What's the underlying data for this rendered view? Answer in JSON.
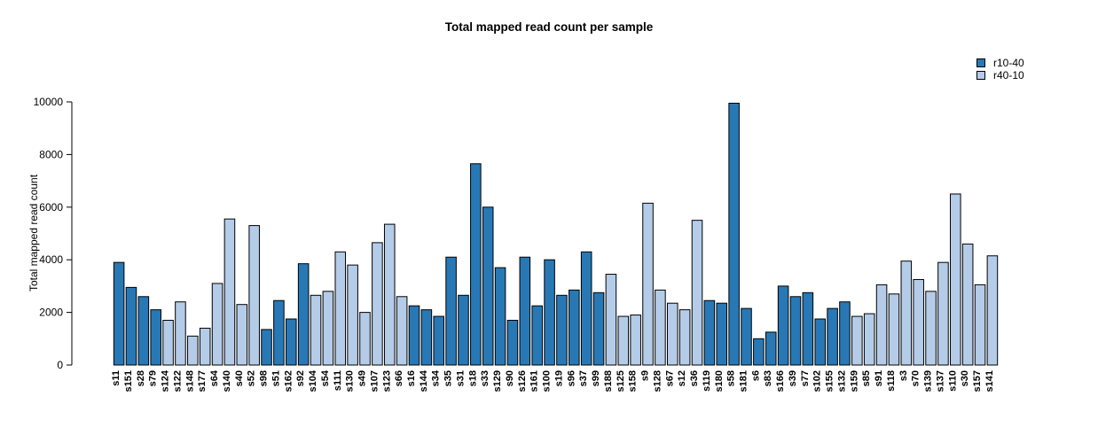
{
  "page": {
    "background_color": "#ffffff"
  },
  "chart_data": {
    "type": "bar",
    "title": "Total mapped read count per sample",
    "xlabel": "",
    "ylabel": "Total mapped read count",
    "ylim": [
      0,
      10000
    ],
    "yticks": [
      0,
      2000,
      4000,
      6000,
      8000,
      10000
    ],
    "grid": false,
    "bar_border_color": "#000000",
    "colors": {
      "r10-40": "#2878B5",
      "r40-10": "#B4CCE8"
    },
    "legend": {
      "position": "top-right",
      "entries": [
        {
          "label": "r10-40",
          "color": "#2878B5"
        },
        {
          "label": "r40-10",
          "color": "#B4CCE8"
        }
      ]
    },
    "bars": [
      {
        "sample": "s11",
        "group": "r10-40",
        "value": 3900
      },
      {
        "sample": "s151",
        "group": "r10-40",
        "value": 2950
      },
      {
        "sample": "s28",
        "group": "r10-40",
        "value": 2600
      },
      {
        "sample": "s79",
        "group": "r10-40",
        "value": 2100
      },
      {
        "sample": "s124",
        "group": "r40-10",
        "value": 1700
      },
      {
        "sample": "s122",
        "group": "r40-10",
        "value": 2400
      },
      {
        "sample": "s148",
        "group": "r40-10",
        "value": 1100
      },
      {
        "sample": "s177",
        "group": "r40-10",
        "value": 1400
      },
      {
        "sample": "s64",
        "group": "r40-10",
        "value": 3100
      },
      {
        "sample": "s140",
        "group": "r40-10",
        "value": 5550
      },
      {
        "sample": "s40",
        "group": "r40-10",
        "value": 2300
      },
      {
        "sample": "s52",
        "group": "r40-10",
        "value": 5300
      },
      {
        "sample": "s98",
        "group": "r10-40",
        "value": 1350
      },
      {
        "sample": "s51",
        "group": "r10-40",
        "value": 2450
      },
      {
        "sample": "s162",
        "group": "r10-40",
        "value": 1750
      },
      {
        "sample": "s92",
        "group": "r10-40",
        "value": 3850
      },
      {
        "sample": "s104",
        "group": "r40-10",
        "value": 2650
      },
      {
        "sample": "s54",
        "group": "r40-10",
        "value": 2800
      },
      {
        "sample": "s111",
        "group": "r40-10",
        "value": 4300
      },
      {
        "sample": "s130",
        "group": "r40-10",
        "value": 3800
      },
      {
        "sample": "s49",
        "group": "r40-10",
        "value": 2000
      },
      {
        "sample": "s107",
        "group": "r40-10",
        "value": 4650
      },
      {
        "sample": "s123",
        "group": "r40-10",
        "value": 5350
      },
      {
        "sample": "s66",
        "group": "r40-10",
        "value": 2600
      },
      {
        "sample": "s16",
        "group": "r10-40",
        "value": 2250
      },
      {
        "sample": "s144",
        "group": "r10-40",
        "value": 2100
      },
      {
        "sample": "s34",
        "group": "r10-40",
        "value": 1850
      },
      {
        "sample": "s35",
        "group": "r10-40",
        "value": 4100
      },
      {
        "sample": "s31",
        "group": "r10-40",
        "value": 2650
      },
      {
        "sample": "s18",
        "group": "r10-40",
        "value": 7650
      },
      {
        "sample": "s33",
        "group": "r10-40",
        "value": 6000
      },
      {
        "sample": "s129",
        "group": "r10-40",
        "value": 3700
      },
      {
        "sample": "s90",
        "group": "r10-40",
        "value": 1700
      },
      {
        "sample": "s126",
        "group": "r10-40",
        "value": 4100
      },
      {
        "sample": "s161",
        "group": "r10-40",
        "value": 2250
      },
      {
        "sample": "s100",
        "group": "r10-40",
        "value": 4000
      },
      {
        "sample": "s19",
        "group": "r10-40",
        "value": 2650
      },
      {
        "sample": "s96",
        "group": "r10-40",
        "value": 2850
      },
      {
        "sample": "s37",
        "group": "r10-40",
        "value": 4300
      },
      {
        "sample": "s99",
        "group": "r10-40",
        "value": 2750
      },
      {
        "sample": "s188",
        "group": "r40-10",
        "value": 3450
      },
      {
        "sample": "s125",
        "group": "r40-10",
        "value": 1850
      },
      {
        "sample": "s158",
        "group": "r40-10",
        "value": 1900
      },
      {
        "sample": "s9",
        "group": "r40-10",
        "value": 6150
      },
      {
        "sample": "s128",
        "group": "r40-10",
        "value": 2850
      },
      {
        "sample": "s67",
        "group": "r40-10",
        "value": 2350
      },
      {
        "sample": "s12",
        "group": "r40-10",
        "value": 2100
      },
      {
        "sample": "s36",
        "group": "r40-10",
        "value": 5500
      },
      {
        "sample": "s119",
        "group": "r10-40",
        "value": 2450
      },
      {
        "sample": "s180",
        "group": "r10-40",
        "value": 2350
      },
      {
        "sample": "s58",
        "group": "r10-40",
        "value": 9950
      },
      {
        "sample": "s181",
        "group": "r10-40",
        "value": 2150
      },
      {
        "sample": "s6",
        "group": "r10-40",
        "value": 1000
      },
      {
        "sample": "s83",
        "group": "r10-40",
        "value": 1250
      },
      {
        "sample": "s166",
        "group": "r10-40",
        "value": 3000
      },
      {
        "sample": "s39",
        "group": "r10-40",
        "value": 2600
      },
      {
        "sample": "s77",
        "group": "r10-40",
        "value": 2750
      },
      {
        "sample": "s102",
        "group": "r10-40",
        "value": 1750
      },
      {
        "sample": "s155",
        "group": "r10-40",
        "value": 2150
      },
      {
        "sample": "s132",
        "group": "r10-40",
        "value": 2400
      },
      {
        "sample": "s159",
        "group": "r40-10",
        "value": 1850
      },
      {
        "sample": "s85",
        "group": "r40-10",
        "value": 1950
      },
      {
        "sample": "s91",
        "group": "r40-10",
        "value": 3050
      },
      {
        "sample": "s118",
        "group": "r40-10",
        "value": 2700
      },
      {
        "sample": "s3",
        "group": "r40-10",
        "value": 3950
      },
      {
        "sample": "s70",
        "group": "r40-10",
        "value": 3250
      },
      {
        "sample": "s139",
        "group": "r40-10",
        "value": 2800
      },
      {
        "sample": "s137",
        "group": "r40-10",
        "value": 3900
      },
      {
        "sample": "s110",
        "group": "r40-10",
        "value": 6500
      },
      {
        "sample": "s30",
        "group": "r40-10",
        "value": 4600
      },
      {
        "sample": "s157",
        "group": "r40-10",
        "value": 3050
      },
      {
        "sample": "s141",
        "group": "r40-10",
        "value": 4150
      }
    ]
  }
}
